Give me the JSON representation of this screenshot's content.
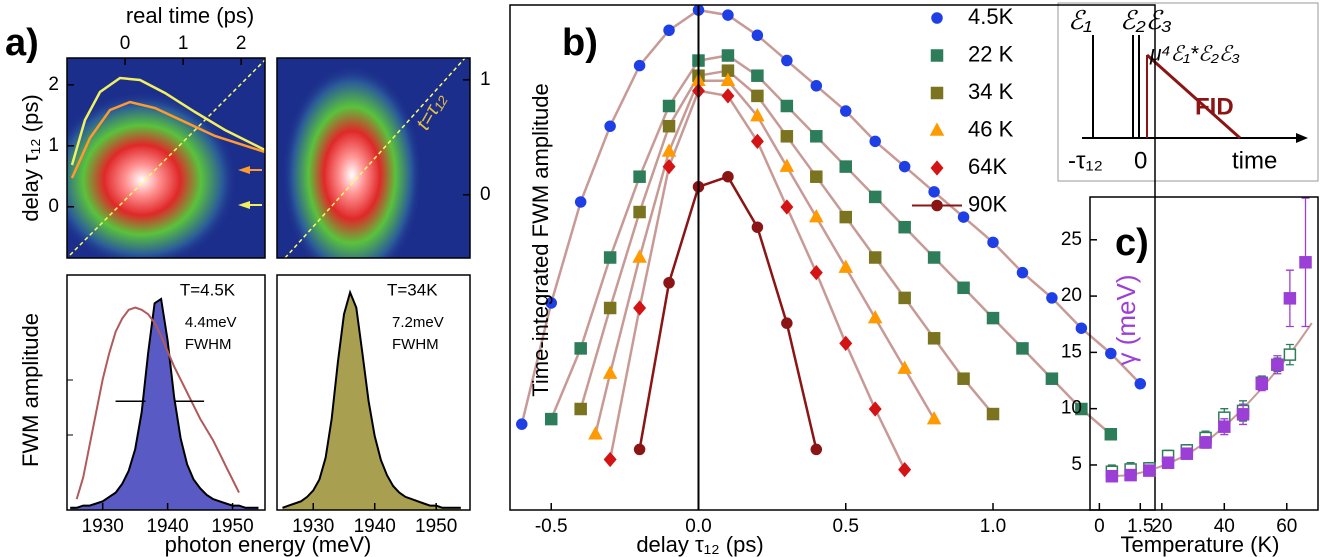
{
  "chart_data": [
    {
      "type": "heatmap",
      "label": "a)",
      "xlabel": "real time (ps)",
      "ylabel": "delay τ₁₂ (ps)",
      "xlim": [
        -1.0,
        2.41
      ],
      "xticks": [
        0,
        1,
        2
      ],
      "ylim": [
        -0.84,
        2.44
      ],
      "yticks": [
        0,
        1,
        2
      ]
    },
    {
      "type": "heatmap",
      "annotation": "t=τ₁₂",
      "y2lim": [
        -0.55,
        1.19
      ],
      "y2ticks": [
        0,
        1
      ]
    },
    {
      "type": "area",
      "ylabel": "FWM amplitude",
      "xlabel": "photon energy (meV)",
      "annotations": [
        "T=4.5K",
        "4.4meV",
        "FWHM"
      ],
      "xlim": [
        1924.5,
        1955
      ],
      "xticks": [
        1930,
        1940,
        1950
      ],
      "ylim": [
        0,
        1.08
      ],
      "x": [
        1925,
        1926,
        1927,
        1928,
        1929,
        1930,
        1931,
        1932,
        1933,
        1934,
        1935,
        1936,
        1937,
        1938,
        1939,
        1940,
        1941,
        1942,
        1943,
        1944,
        1945,
        1946,
        1947,
        1948,
        1949,
        1950,
        1951,
        1952,
        1953,
        1954
      ],
      "series": [
        {
          "color": "#5a5ac4",
          "fill": true,
          "values": [
            0.01,
            0.01,
            0.02,
            0.02,
            0.03,
            0.04,
            0.06,
            0.08,
            0.12,
            0.18,
            0.28,
            0.45,
            0.72,
            0.95,
            0.97,
            0.78,
            0.52,
            0.33,
            0.21,
            0.14,
            0.1,
            0.07,
            0.05,
            0.04,
            0.03,
            0.02,
            0.02,
            0.01,
            0.01,
            0.01
          ]
        },
        {
          "color": "#b05a5a",
          "fill": false,
          "values": [
            null,
            0.05,
            0.15,
            0.3,
            0.45,
            0.6,
            0.72,
            0.82,
            0.88,
            0.92,
            0.93,
            0.92,
            0.9,
            0.86,
            0.8,
            0.73,
            0.66,
            0.6,
            0.54,
            0.48,
            0.42,
            0.37,
            0.32,
            0.26,
            0.2,
            0.14,
            0.08,
            null,
            null,
            null
          ]
        }
      ]
    },
    {
      "type": "area",
      "annotations": [
        "T=34K",
        "7.2meV",
        "FWHM"
      ],
      "xlim": [
        1924.1,
        1955.5
      ],
      "xticks": [
        1930,
        1940,
        1950
      ],
      "ylim": [
        0,
        1.08
      ],
      "x": [
        1925,
        1926,
        1927,
        1928,
        1929,
        1930,
        1931,
        1932,
        1933,
        1934,
        1935,
        1936,
        1937,
        1938,
        1939,
        1940,
        1941,
        1942,
        1943,
        1944,
        1945,
        1946,
        1947,
        1948,
        1949,
        1950,
        1951,
        1952,
        1953,
        1954
      ],
      "series": [
        {
          "color": "#a8a050",
          "fill": true,
          "values": [
            0.01,
            0.02,
            0.03,
            0.04,
            0.06,
            0.09,
            0.14,
            0.24,
            0.42,
            0.68,
            0.9,
            1.0,
            0.93,
            0.72,
            0.5,
            0.34,
            0.23,
            0.16,
            0.11,
            0.08,
            0.06,
            0.05,
            0.04,
            0.03,
            0.02,
            0.02,
            0.01,
            0.01,
            0.01,
            0.01
          ]
        }
      ]
    },
    {
      "type": "scatter",
      "label": "b)",
      "ylabel": "Time-integrated FWM amplitude",
      "xlabel": "delay τ₁₂ (ps)",
      "xlim": [
        -0.64,
        1.55
      ],
      "xticks": [
        -0.5,
        {
          "value": 0,
          "label": "0.0"
        },
        0.5,
        {
          "value": 1,
          "label": "1.0"
        },
        1.5
      ],
      "ylim": [
        0,
        10
      ],
      "series": [
        {
          "name": "4.5K",
          "color": "#1f3fe6",
          "marker": "circle",
          "line_color": "#c89a96",
          "x": [
            -0.6,
            -0.5,
            -0.4,
            -0.3,
            -0.2,
            -0.1,
            0,
            0.1,
            0.2,
            0.3,
            0.4,
            0.5,
            0.6,
            0.7,
            0.8,
            0.9,
            1,
            1.1,
            1.2,
            1.3,
            1.4,
            1.5
          ],
          "values": [
            1.7,
            4.1,
            6.1,
            7.6,
            8.8,
            9.5,
            9.9,
            9.8,
            9.4,
            8.9,
            8.4,
            7.9,
            7.3,
            6.8,
            6.3,
            5.8,
            5.3,
            4.7,
            4.2,
            3.6,
            3.1,
            2.5
          ]
        },
        {
          "name": "22 K",
          "color": "#2e7d5a",
          "marker": "square",
          "line_color": "#c89a96",
          "x": [
            -0.5,
            -0.4,
            -0.3,
            -0.2,
            -0.1,
            0,
            0.1,
            0.2,
            0.3,
            0.4,
            0.5,
            0.6,
            0.7,
            0.8,
            0.9,
            1,
            1.1,
            1.2,
            1.3,
            1.4
          ],
          "values": [
            1.8,
            3.2,
            5.0,
            6.6,
            8.0,
            8.9,
            9.0,
            8.6,
            8.0,
            7.4,
            6.8,
            6.2,
            5.6,
            5.0,
            4.4,
            3.8,
            3.2,
            2.6,
            2.0,
            1.5
          ]
        },
        {
          "name": "34 K",
          "color": "#7a7420",
          "marker": "square",
          "line_color": "#c89a96",
          "x": [
            -0.4,
            -0.3,
            -0.2,
            -0.1,
            0,
            0.1,
            0.2,
            0.3,
            0.4,
            0.5,
            0.6,
            0.7,
            0.8,
            0.9,
            1
          ],
          "values": [
            2.0,
            4.0,
            5.9,
            7.6,
            8.6,
            8.7,
            8.2,
            7.4,
            6.6,
            5.8,
            5.0,
            4.2,
            3.4,
            2.6,
            1.9
          ]
        },
        {
          "name": "46 K",
          "color": "#ff9a00",
          "marker": "triangle",
          "line_color": "#c89a96",
          "x": [
            -0.35,
            -0.3,
            -0.2,
            -0.1,
            0,
            0.1,
            0.2,
            0.3,
            0.4,
            0.5,
            0.6,
            0.7,
            0.8
          ],
          "values": [
            1.5,
            2.7,
            5.0,
            7.1,
            8.5,
            8.5,
            7.8,
            6.8,
            5.8,
            4.8,
            3.8,
            2.8,
            1.8
          ]
        },
        {
          "name": "64K",
          "color": "#d41414",
          "marker": "diamond",
          "line_color": "#c89a96",
          "x": [
            -0.3,
            -0.2,
            -0.1,
            0,
            0.1,
            0.2,
            0.3,
            0.4,
            0.5,
            0.6,
            0.7
          ],
          "values": [
            1.0,
            4.0,
            6.8,
            8.3,
            8.2,
            7.3,
            6.0,
            4.7,
            3.3,
            2.0,
            0.8
          ]
        },
        {
          "name": "90K",
          "color": "#8b1414",
          "marker": "circle",
          "line_color": "#8b1414",
          "x": [
            -0.2,
            -0.1,
            0,
            0.1,
            0.2,
            0.3,
            0.4
          ],
          "values": [
            1.2,
            4.5,
            6.4,
            6.6,
            5.6,
            3.7,
            1.2
          ]
        }
      ]
    },
    {
      "type": "errorbar",
      "label": "c)",
      "ylabel": "γ (meV)",
      "ylabel_color": "#9b3fd6",
      "xlabel": "Temperature (K)",
      "xlim": [
        -3,
        70
      ],
      "xticks": [
        0,
        20,
        40,
        60
      ],
      "ylim": [
        1,
        28.8
      ],
      "yticks": [
        5,
        10,
        15,
        20,
        25
      ],
      "series": [
        {
          "color": "#c89a96",
          "line": true,
          "x": [
            4,
            10,
            16,
            22,
            28,
            34,
            40,
            46,
            52,
            58,
            64,
            68
          ],
          "values": [
            4.0,
            4.1,
            4.5,
            5.1,
            5.9,
            7.0,
            8.4,
            10.0,
            11.8,
            13.8,
            16.0,
            17.6
          ]
        },
        {
          "color": "#2e7d5a",
          "marker": "square",
          "filled": false,
          "x": [
            4,
            10,
            16,
            22,
            28,
            34,
            40,
            46,
            52,
            57,
            61
          ],
          "values": [
            4.4,
            4.6,
            4.7,
            5.8,
            6.3,
            7.4,
            9.2,
            9.8,
            12.3,
            13.9,
            14.8
          ],
          "errors": [
            0.6,
            0.6,
            0.5,
            0.5,
            0.5,
            0.6,
            0.8,
            0.9,
            0.6,
            0.6,
            0.9
          ]
        },
        {
          "color": "#9b3fd6",
          "marker": "square",
          "filled": true,
          "x": [
            4,
            10,
            16,
            22,
            28,
            34,
            40,
            46,
            52,
            57,
            61,
            66
          ],
          "values": [
            4.0,
            4.1,
            4.5,
            5.2,
            6.0,
            7.0,
            8.4,
            9.5,
            12.2,
            13.9,
            19.8,
            23.0
          ],
          "errors": [
            0.3,
            0.3,
            0.3,
            0.3,
            0.4,
            0.5,
            0.7,
            0.9,
            0.6,
            0.8,
            2.5,
            5.7
          ]
        }
      ]
    }
  ],
  "inset": {
    "e1": "ℰ₁",
    "e23": "ℰ₂ℰ₃",
    "signal": "μ⁴ℰ₁*ℰ₂ℰ₃",
    "fid": "FID",
    "t1": "-τ₁₂",
    "t0": "0",
    "time": "time"
  }
}
